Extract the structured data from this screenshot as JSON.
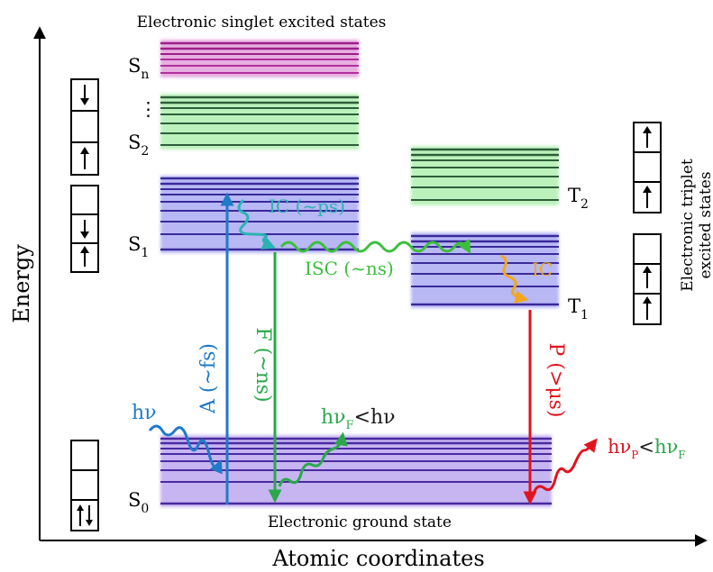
{
  "diagram": {
    "axes": {
      "y_label": "Energy",
      "x_label": "Atomic coordinates"
    },
    "titles": {
      "singlet_header": "Electronic singlet excited states",
      "ground_state": "Electronic ground state",
      "triplet_label_line1": "Electronic triplet",
      "triplet_label_line2": "excited states"
    },
    "state_labels": {
      "sn": "S",
      "sn_sub": "n",
      "ellipsis": "⋮",
      "s2": "S",
      "s2_sub": "2",
      "s1": "S",
      "s1_sub": "1",
      "s0": "S",
      "s0_sub": "0",
      "t2": "T",
      "t2_sub": "2",
      "t1": "T",
      "t1_sub": "1"
    },
    "processes": {
      "absorption": "A (~fs)",
      "fluorescence": "F (~ns)",
      "phosphorescence": "P (>μs)",
      "ic_singlet": "IC (~ps)",
      "isc": "ISC (~ns)",
      "ic_triplet": "IC"
    },
    "photons": {
      "incident": "hν",
      "fluor_main": "hν",
      "fluor_sub": "F",
      "fluor_rest": "<hν",
      "phos_main": "hν",
      "phos_sub": "P",
      "phos_lt": "<",
      "phos_rest": "hν",
      "phos_rest_sub": "F"
    },
    "colors": {
      "sn_band": "#9b1f8a",
      "s2_band": "#2e5e3a",
      "singlet_band": "#3a2a9a",
      "triplet_t2": "#2e5e3a",
      "triplet_t1": "#3a2a9a",
      "ground": "#4a2aa0",
      "absorption": "#1f7ac8",
      "fluorescence": "#2aa84a",
      "phosphorescence": "#e0141e",
      "ic_singlet": "#2bb3b3",
      "isc": "#3cbf3c",
      "ic_triplet": "#f2a81a"
    },
    "icons": [
      "spin-up-arrow",
      "spin-down-arrow",
      "wavy-arrow"
    ]
  }
}
